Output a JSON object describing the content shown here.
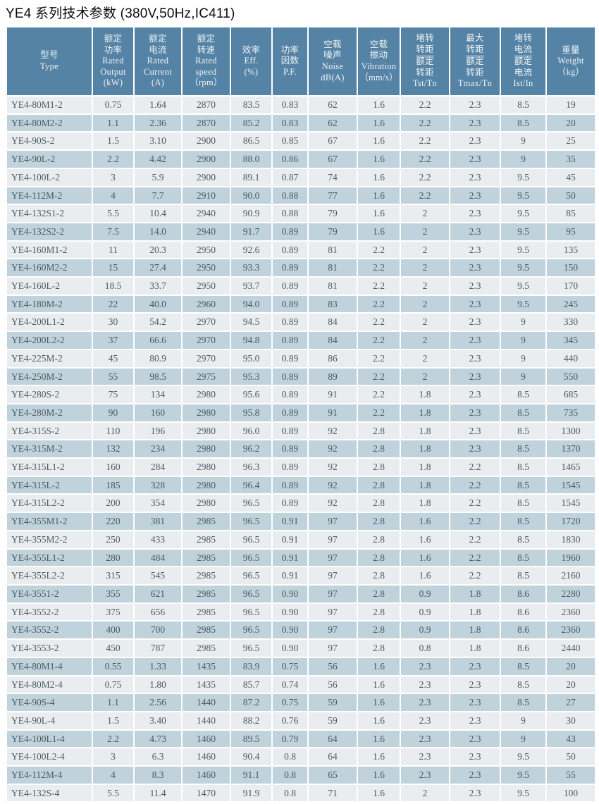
{
  "page_title": "YE4 系列技术参数 (380V,50Hz,IC411)",
  "colors": {
    "header_bg": "#5583a5",
    "header_text": "#edf2f5",
    "row_light": "#e9edef",
    "row_dark": "#c0d2db",
    "cell_text": "#4c5a60",
    "page_bg": "#ffffff",
    "title_text": "#0c0c0c"
  },
  "table": {
    "headers": [
      {
        "key": "type",
        "lines": [
          "型号",
          "Type"
        ]
      },
      {
        "key": "rated-output-kw",
        "lines": [
          "额定",
          "功率",
          "Rated",
          "Output",
          "(kW)"
        ]
      },
      {
        "key": "rated-current-a",
        "lines": [
          "额定",
          "电流",
          "Rated",
          "Current",
          "(A)"
        ]
      },
      {
        "key": "rated-speed-rpm",
        "lines": [
          "额定",
          "转速",
          "Rated",
          "speed",
          "（rpm）"
        ]
      },
      {
        "key": "efficiency-pct",
        "lines": [
          "效率",
          "Eff.",
          "(%)"
        ]
      },
      {
        "key": "power-factor",
        "lines": [
          "功率",
          "因数",
          "P.F."
        ]
      },
      {
        "key": "noise-dba",
        "lines": [
          "空载",
          "噪声",
          "Noise",
          "dB(A)"
        ]
      },
      {
        "key": "vibration-mm-s",
        "lines": [
          "空载",
          "振动",
          "Vibration",
          "（mm/s）"
        ]
      },
      {
        "key": "tst-tn",
        "lines": [
          "堵转",
          "转距",
          "额定",
          "转距",
          "Tst/Tn"
        ],
        "underline": 1
      },
      {
        "key": "tmax-tn",
        "lines": [
          "最大",
          "转距",
          "额定",
          "转距",
          "Tmax/Tn"
        ],
        "underline": 1
      },
      {
        "key": "ist-in",
        "lines": [
          "堵转",
          "电流",
          "额定",
          "电流",
          "Ist/In"
        ],
        "underline": 1
      },
      {
        "key": "weight-kg",
        "lines": [
          "重量",
          "Weight",
          "（kg）"
        ]
      }
    ],
    "rows": [
      [
        "YE4-80M1-2",
        "0.75",
        "1.64",
        "2870",
        "83.5",
        "0.83",
        "62",
        "1.6",
        "2.2",
        "2.3",
        "8.5",
        "19"
      ],
      [
        "YE4-80M2-2",
        "1.1",
        "2.36",
        "2870",
        "85.2",
        "0.83",
        "62",
        "1.6",
        "2.2",
        "2.3",
        "8.5",
        "20"
      ],
      [
        "YE4-90S-2",
        "1.5",
        "3.10",
        "2900",
        "86.5",
        "0.85",
        "67",
        "1.6",
        "2.2",
        "2.3",
        "9",
        "25"
      ],
      [
        "YE4-90L-2",
        "2.2",
        "4.42",
        "2900",
        "88.0",
        "0.86",
        "67",
        "1.6",
        "2.2",
        "2.3",
        "9",
        "35"
      ],
      [
        "YE4-100L-2",
        "3",
        "5.9",
        "2900",
        "89.1",
        "0.87",
        "74",
        "1.6",
        "2.2",
        "2.3",
        "9.5",
        "45"
      ],
      [
        "YE4-112M-2",
        "4",
        "7.7",
        "2910",
        "90.0",
        "0.88",
        "77",
        "1.6",
        "2.2",
        "2.3",
        "9.5",
        "50"
      ],
      [
        "YE4-132S1-2",
        "5.5",
        "10.4",
        "2940",
        "90.9",
        "0.88",
        "79",
        "1.6",
        "2",
        "2.3",
        "9.5",
        "85"
      ],
      [
        "YE4-132S2-2",
        "7.5",
        "14.0",
        "2940",
        "91.7",
        "0.89",
        "79",
        "1.6",
        "2",
        "2.3",
        "9.5",
        "95"
      ],
      [
        "YE4-160M1-2",
        "11",
        "20.3",
        "2950",
        "92.6",
        "0.89",
        "81",
        "2.2",
        "2",
        "2.3",
        "9.5",
        "135"
      ],
      [
        "YE4-160M2-2",
        "15",
        "27.4",
        "2950",
        "93.3",
        "0.89",
        "81",
        "2.2",
        "2",
        "2.3",
        "9.5",
        "150"
      ],
      [
        "YE4-160L-2",
        "18.5",
        "33.7",
        "2950",
        "93.7",
        "0.89",
        "81",
        "2.2",
        "2",
        "2.3",
        "9.5",
        "170"
      ],
      [
        "YE4-180M-2",
        "22",
        "40.0",
        "2960",
        "94.0",
        "0.89",
        "83",
        "2.2",
        "2",
        "2.3",
        "9.5",
        "245"
      ],
      [
        "YE4-200L1-2",
        "30",
        "54.2",
        "2970",
        "94.5",
        "0.89",
        "84",
        "2.2",
        "2",
        "2.3",
        "9",
        "330"
      ],
      [
        "YE4-200L2-2",
        "37",
        "66.6",
        "2970",
        "94.8",
        "0.89",
        "84",
        "2.2",
        "2",
        "2.3",
        "9",
        "345"
      ],
      [
        "YE4-225M-2",
        "45",
        "80.9",
        "2970",
        "95.0",
        "0.89",
        "86",
        "2.2",
        "2",
        "2.3",
        "9",
        "440"
      ],
      [
        "YE4-250M-2",
        "55",
        "98.5",
        "2975",
        "95.3",
        "0.89",
        "89",
        "2.2",
        "2",
        "2.3",
        "9",
        "550"
      ],
      [
        "YE4-280S-2",
        "75",
        "134",
        "2980",
        "95.6",
        "0.89",
        "91",
        "2.2",
        "1.8",
        "2.3",
        "8.5",
        "685"
      ],
      [
        "YE4-280M-2",
        "90",
        "160",
        "2980",
        "95.8",
        "0.89",
        "91",
        "2.2",
        "1.8",
        "2.3",
        "8.5",
        "735"
      ],
      [
        "YE4-315S-2",
        "110",
        "196",
        "2980",
        "96.0",
        "0.89",
        "92",
        "2.8",
        "1.8",
        "2.3",
        "8.5",
        "1300"
      ],
      [
        "YE4-315M-2",
        "132",
        "234",
        "2980",
        "96.2",
        "0.89",
        "92",
        "2.8",
        "1.8",
        "2.3",
        "8.5",
        "1370"
      ],
      [
        "YE4-315L1-2",
        "160",
        "284",
        "2980",
        "96.3",
        "0.89",
        "92",
        "2.8",
        "1.8",
        "2.2",
        "8.5",
        "1465"
      ],
      [
        "YE4-315L-2",
        "185",
        "328",
        "2980",
        "96.4",
        "0.89",
        "92",
        "2.8",
        "1.8",
        "2.2",
        "8.5",
        "1545"
      ],
      [
        "YE4-315L2-2",
        "200",
        "354",
        "2980",
        "96.5",
        "0.89",
        "92",
        "2.8",
        "1.8",
        "2.2",
        "8.5",
        "1545"
      ],
      [
        "YE4-355M1-2",
        "220",
        "381",
        "2985",
        "96.5",
        "0.91",
        "97",
        "2.8",
        "1.6",
        "2.2",
        "8.5",
        "1720"
      ],
      [
        "YE4-355M2-2",
        "250",
        "433",
        "2985",
        "96.5",
        "0.91",
        "97",
        "2.8",
        "1.6",
        "2.2",
        "8.5",
        "1830"
      ],
      [
        "YE4-355L1-2",
        "280",
        "484",
        "2985",
        "96.5",
        "0.91",
        "97",
        "2.8",
        "1.6",
        "2.2",
        "8.5",
        "1960"
      ],
      [
        "YE4-355L2-2",
        "315",
        "545",
        "2985",
        "96.5",
        "0.91",
        "97",
        "2.8",
        "1.6",
        "2.2",
        "8.5",
        "2160"
      ],
      [
        "YE4-3551-2",
        "355",
        "621",
        "2985",
        "96.5",
        "0.90",
        "97",
        "2.8",
        "0.9",
        "1.8",
        "8.6",
        "2280"
      ],
      [
        "YE4-3552-2",
        "375",
        "656",
        "2985",
        "96.5",
        "0.90",
        "97",
        "2.8",
        "0.9",
        "1.8",
        "8.6",
        "2360"
      ],
      [
        "YE4-3552-2",
        "400",
        "700",
        "2985",
        "96.5",
        "0.90",
        "97",
        "2.8",
        "0.9",
        "1.8",
        "8.6",
        "2360"
      ],
      [
        "YE4-3553-2",
        "450",
        "787",
        "2985",
        "96.5",
        "0.90",
        "97",
        "2.8",
        "0.8",
        "1.8",
        "8.6",
        "2440"
      ],
      [
        "YE4-80M1-4",
        "0.55",
        "1.33",
        "1435",
        "83.9",
        "0.75",
        "56",
        "1.6",
        "2.3",
        "2.3",
        "8.5",
        "20"
      ],
      [
        "YE4-80M2-4",
        "0.75",
        "1.80",
        "1435",
        "85.7",
        "0.74",
        "56",
        "1.6",
        "2.3",
        "2.3",
        "8.5",
        "20"
      ],
      [
        "YE4-90S-4",
        "1.1",
        "2.56",
        "1440",
        "87.2",
        "0.75",
        "59",
        "1.6",
        "2.3",
        "2.3",
        "8.5",
        "27"
      ],
      [
        "YE4-90L-4",
        "1.5",
        "3.40",
        "1440",
        "88.2",
        "0.76",
        "59",
        "1.6",
        "2.3",
        "2.3",
        "9",
        "30"
      ],
      [
        "YE4-100L1-4",
        "2.2",
        "4.73",
        "1460",
        "89.5",
        "0.79",
        "64",
        "1.6",
        "2.3",
        "2.3",
        "9",
        "43"
      ],
      [
        "YE4-100L2-4",
        "3",
        "6.3",
        "1460",
        "90.4",
        "0.8",
        "64",
        "1.6",
        "2.3",
        "2.3",
        "9.5",
        "50"
      ],
      [
        "YE4-112M-4",
        "4",
        "8.3",
        "1460",
        "91.1",
        "0.8",
        "65",
        "1.6",
        "2.3",
        "2.3",
        "9.5",
        "55"
      ],
      [
        "YE4-132S-4",
        "5.5",
        "11.4",
        "1470",
        "91.9",
        "0.8",
        "71",
        "1.6",
        "2",
        "2.3",
        "9.5",
        "100"
      ]
    ]
  }
}
